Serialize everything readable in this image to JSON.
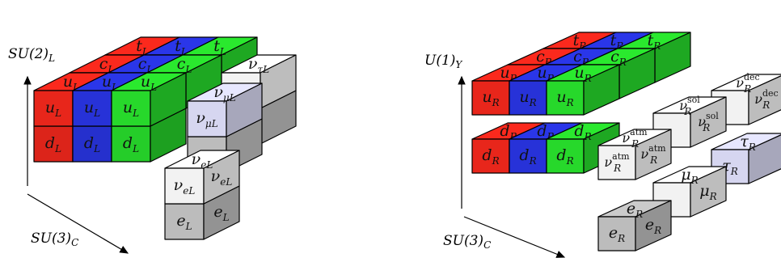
{
  "colors": {
    "red": "#e8261b",
    "blue": "#2732d8",
    "green": "#27d82b",
    "white": "#f2f2f2",
    "gray": "#bcbcbc",
    "lavender": "#d6d6f0"
  },
  "left": {
    "axis_vertical": "SU(2)_L",
    "axis_horizontal": "SU(3)_C",
    "cubes": [
      {
        "col": "red",
        "x": 0,
        "y": 2,
        "up": {
          "t": "t",
          "s": "L"
        }
      },
      {
        "col": "blue",
        "x": 1,
        "y": 2,
        "up": {
          "t": "t",
          "s": "L"
        },
        "front": {
          "t": "t",
          "s": "L"
        }
      },
      {
        "col": "green",
        "x": 2,
        "y": 2,
        "up": {
          "t": "t",
          "s": "L"
        },
        "front": {
          "t": "t",
          "s": "L"
        }
      },
      {
        "col": "red",
        "x": 0,
        "y": 1,
        "up": {
          "t": "c",
          "s": "L"
        }
      },
      {
        "col": "blue",
        "x": 1,
        "y": 1,
        "up": {
          "t": "c",
          "s": "L"
        }
      },
      {
        "col": "green",
        "x": 2,
        "y": 1,
        "up": {
          "t": "c",
          "s": "L"
        },
        "front": {
          "t": "c",
          "s": "L"
        }
      },
      {
        "col": "red",
        "x": 0,
        "y": 0,
        "up": {
          "t": "u",
          "s": "L"
        },
        "front": {
          "t": "u",
          "s": "L"
        },
        "front2": {
          "t": "d",
          "s": "L"
        }
      },
      {
        "col": "blue",
        "x": 1,
        "y": 0,
        "up": {
          "t": "u",
          "s": "L"
        },
        "front": {
          "t": "u",
          "s": "L"
        },
        "front2": {
          "t": "d",
          "s": "L"
        }
      },
      {
        "col": "green",
        "x": 2,
        "y": 0,
        "up": {
          "t": "u",
          "s": "L"
        },
        "front": {
          "t": "u",
          "s": "L"
        },
        "front2": {
          "t": "d",
          "s": "L"
        }
      }
    ],
    "leptons": [
      {
        "col": "white",
        "x": 3,
        "y": 2,
        "up": {
          "t": "ν",
          "s": "τL"
        },
        "front": {
          "t": "ν",
          "s": "τL"
        },
        "front2": {
          "t": "τ",
          "s": "L"
        }
      },
      {
        "col": "lavender",
        "x": 3,
        "y": 1,
        "up": {
          "t": "ν",
          "s": "μL"
        },
        "front": {
          "t": "ν",
          "s": "μL"
        },
        "front2": {
          "t": "μ",
          "s": "L"
        }
      },
      {
        "col": "white",
        "x": 3,
        "y": 0,
        "up": {
          "t": "ν",
          "s": "eL"
        },
        "front": {
          "t": "ν",
          "s": "eL"
        },
        "side": {
          "t": "ν",
          "s": "eL"
        },
        "front2": {
          "t": "e",
          "s": "L"
        },
        "side2": {
          "t": "e",
          "s": "L"
        }
      }
    ]
  },
  "right": {
    "axis_vertical": "U(1)_Y",
    "axis_horizontal": "SU(3)_C",
    "labels": {
      "t": "t",
      "c": "c",
      "u": "u",
      "d": "d",
      "e": "e",
      "mu": "μ",
      "tau": "τ",
      "nu": "ν",
      "R": "R",
      "atm": "atm",
      "sol": "sol",
      "dec": "dec"
    }
  }
}
